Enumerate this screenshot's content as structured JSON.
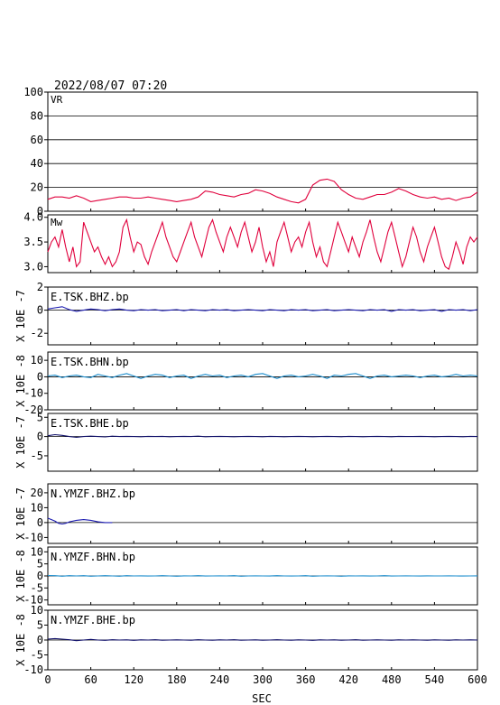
{
  "header": {
    "timestamp": "2022/08/07  07:20"
  },
  "chart_data": [
    {
      "type": "line",
      "label": "VR",
      "ylim": [
        0,
        100
      ],
      "yticks": [
        "0",
        "20",
        "40",
        "60",
        "80",
        "100"
      ],
      "ytick_values": [
        0,
        20,
        40,
        60,
        80,
        100
      ],
      "grid": true,
      "color": "#e0003c",
      "x": [
        0,
        10,
        20,
        30,
        40,
        50,
        60,
        70,
        80,
        90,
        100,
        110,
        120,
        130,
        140,
        150,
        160,
        170,
        180,
        190,
        200,
        210,
        220,
        230,
        240,
        250,
        260,
        270,
        280,
        290,
        300,
        310,
        320,
        330,
        340,
        350,
        360,
        370,
        380,
        390,
        400,
        410,
        420,
        430,
        440,
        450,
        460,
        470,
        480,
        490,
        500,
        510,
        520,
        530,
        540,
        550,
        560,
        570,
        580,
        590,
        600
      ],
      "y": [
        10,
        12,
        12,
        11,
        13,
        11,
        8,
        9,
        10,
        11,
        12,
        12,
        11,
        11,
        12,
        11,
        10,
        9,
        8,
        9,
        10,
        12,
        17,
        16,
        14,
        13,
        12,
        14,
        15,
        18,
        17,
        15,
        12,
        10,
        8,
        7,
        10,
        22,
        26,
        27,
        25,
        18,
        14,
        11,
        10,
        12,
        14,
        14,
        16,
        19,
        17,
        14,
        12,
        11,
        12,
        10,
        11,
        9,
        11,
        12,
        16
      ]
    },
    {
      "type": "line",
      "label": "Mw",
      "ylim": [
        2.88,
        4.05
      ],
      "yticks": [
        "3.0",
        "3.5",
        "4.0"
      ],
      "ytick_values": [
        3.0,
        3.5,
        4.0
      ],
      "color": "#e0003c",
      "x": [
        0,
        5,
        10,
        15,
        20,
        25,
        30,
        35,
        40,
        45,
        50,
        55,
        60,
        65,
        70,
        75,
        80,
        85,
        90,
        95,
        100,
        105,
        110,
        115,
        120,
        125,
        130,
        135,
        140,
        145,
        150,
        155,
        160,
        165,
        170,
        175,
        180,
        185,
        190,
        195,
        200,
        205,
        210,
        215,
        220,
        225,
        230,
        235,
        240,
        245,
        250,
        255,
        260,
        265,
        270,
        275,
        280,
        285,
        290,
        295,
        300,
        305,
        310,
        315,
        320,
        325,
        330,
        335,
        340,
        345,
        350,
        355,
        360,
        365,
        370,
        375,
        380,
        385,
        390,
        395,
        400,
        405,
        410,
        415,
        420,
        425,
        430,
        435,
        440,
        445,
        450,
        455,
        460,
        465,
        470,
        475,
        480,
        485,
        490,
        495,
        500,
        505,
        510,
        515,
        520,
        525,
        530,
        535,
        540,
        545,
        550,
        555,
        560,
        565,
        570,
        575,
        580,
        585,
        590,
        595,
        600
      ],
      "y": [
        3.3,
        3.5,
        3.6,
        3.4,
        3.75,
        3.4,
        3.1,
        3.4,
        3.0,
        3.1,
        3.9,
        3.7,
        3.5,
        3.3,
        3.4,
        3.2,
        3.05,
        3.2,
        3.0,
        3.1,
        3.3,
        3.8,
        3.95,
        3.6,
        3.3,
        3.5,
        3.45,
        3.2,
        3.05,
        3.3,
        3.5,
        3.7,
        3.9,
        3.6,
        3.4,
        3.2,
        3.1,
        3.3,
        3.5,
        3.7,
        3.9,
        3.6,
        3.4,
        3.2,
        3.5,
        3.8,
        3.95,
        3.7,
        3.5,
        3.3,
        3.6,
        3.8,
        3.6,
        3.4,
        3.7,
        3.9,
        3.6,
        3.3,
        3.5,
        3.8,
        3.4,
        3.1,
        3.3,
        3.0,
        3.5,
        3.7,
        3.9,
        3.6,
        3.3,
        3.5,
        3.6,
        3.4,
        3.7,
        3.9,
        3.5,
        3.2,
        3.4,
        3.1,
        3.0,
        3.3,
        3.6,
        3.9,
        3.7,
        3.5,
        3.3,
        3.6,
        3.4,
        3.2,
        3.5,
        3.7,
        3.95,
        3.6,
        3.3,
        3.1,
        3.4,
        3.7,
        3.9,
        3.6,
        3.3,
        3.0,
        3.2,
        3.5,
        3.8,
        3.6,
        3.3,
        3.1,
        3.4,
        3.6,
        3.8,
        3.5,
        3.2,
        3.0,
        2.95,
        3.2,
        3.5,
        3.3,
        3.05,
        3.4,
        3.6,
        3.5,
        3.6
      ]
    },
    {
      "type": "line",
      "label": "E.TSK.BHZ.bp",
      "ylabel": "X 10E -7",
      "ylim": [
        -3,
        2
      ],
      "yticks": [
        "2",
        "0",
        "-2"
      ],
      "ytick_values": [
        2,
        0,
        -2
      ],
      "zero_line": true,
      "color": "#1a1ab0",
      "x": [
        0,
        10,
        20,
        30,
        40,
        50,
        60,
        70,
        80,
        90,
        100,
        110,
        120,
        130,
        140,
        150,
        160,
        170,
        180,
        190,
        200,
        210,
        220,
        230,
        240,
        250,
        260,
        270,
        280,
        290,
        300,
        310,
        320,
        330,
        340,
        350,
        360,
        370,
        380,
        390,
        400,
        410,
        420,
        430,
        440,
        450,
        460,
        470,
        480,
        490,
        500,
        510,
        520,
        530,
        540,
        550,
        560,
        570,
        580,
        590,
        600
      ],
      "y": [
        0.1,
        0.2,
        0.3,
        0.05,
        -0.1,
        0.0,
        0.1,
        0.05,
        -0.05,
        0.05,
        0.1,
        0.0,
        -0.05,
        0.05,
        0.0,
        0.05,
        -0.05,
        0.0,
        0.05,
        -0.05,
        0.05,
        0.0,
        -0.05,
        0.05,
        0.0,
        0.05,
        -0.05,
        0.0,
        0.05,
        0.0,
        -0.05,
        0.05,
        0.0,
        -0.05,
        0.05,
        0.0,
        0.05,
        -0.05,
        0.0,
        0.05,
        -0.05,
        0.0,
        0.05,
        0.0,
        -0.05,
        0.05,
        0.0,
        0.05,
        -0.1,
        0.05,
        0.0,
        0.05,
        -0.05,
        0.0,
        0.05,
        -0.1,
        0.05,
        0.0,
        0.05,
        -0.05,
        0.05
      ]
    },
    {
      "type": "line",
      "label": "E.TSK.BHN.bp",
      "ylabel": "X 10E -8",
      "ylim": [
        -20,
        15
      ],
      "yticks": [
        "10",
        "0",
        "-10",
        "-20"
      ],
      "ytick_values": [
        10,
        0,
        -10,
        -20
      ],
      "zero_line": true,
      "color": "#1a8ccc",
      "x": [
        0,
        10,
        20,
        30,
        40,
        50,
        60,
        70,
        80,
        90,
        100,
        110,
        120,
        130,
        140,
        150,
        160,
        170,
        180,
        190,
        200,
        210,
        220,
        230,
        240,
        250,
        260,
        270,
        280,
        290,
        300,
        310,
        320,
        330,
        340,
        350,
        360,
        370,
        380,
        390,
        400,
        410,
        420,
        430,
        440,
        450,
        460,
        470,
        480,
        490,
        500,
        510,
        520,
        530,
        540,
        550,
        560,
        570,
        580,
        590,
        600
      ],
      "y": [
        0.5,
        1,
        -0.5,
        0.5,
        1,
        0,
        -0.5,
        1.5,
        0.5,
        -0.5,
        1,
        2,
        0.5,
        -1,
        0.5,
        1.5,
        1,
        -0.5,
        0.5,
        1,
        -1,
        0.5,
        1.5,
        0.5,
        1,
        -0.5,
        0.5,
        1,
        0,
        1.5,
        2,
        0.5,
        -1,
        0.5,
        1,
        0,
        0.5,
        1.5,
        0.5,
        -1,
        1,
        0.5,
        1.5,
        2,
        0.5,
        -1,
        0.5,
        1,
        0,
        0.5,
        1,
        0.5,
        -0.5,
        0.5,
        1,
        0,
        0.5,
        1.5,
        0.5,
        1,
        0.5
      ]
    },
    {
      "type": "line",
      "label": "E.TSK.BHE.bp",
      "ylabel": "X 10E -7",
      "ylim": [
        -9,
        6
      ],
      "yticks": [
        "5",
        "0",
        "-5"
      ],
      "ytick_values": [
        5,
        0,
        -5
      ],
      "zero_line": true,
      "color": "#10106a",
      "x": [
        0,
        10,
        20,
        30,
        40,
        50,
        60,
        70,
        80,
        90,
        100,
        110,
        120,
        130,
        140,
        150,
        160,
        170,
        180,
        190,
        200,
        210,
        220,
        230,
        240,
        250,
        260,
        270,
        280,
        290,
        300,
        310,
        320,
        330,
        340,
        350,
        360,
        370,
        380,
        390,
        400,
        410,
        420,
        430,
        440,
        450,
        460,
        470,
        480,
        490,
        500,
        510,
        520,
        530,
        540,
        550,
        560,
        570,
        580,
        590,
        600
      ],
      "y": [
        0.2,
        0.5,
        0.3,
        0.0,
        -0.2,
        0.0,
        0.1,
        0.0,
        -0.1,
        0.1,
        0.0,
        0.05,
        0.0,
        -0.05,
        0.05,
        0.0,
        0.05,
        -0.05,
        0.0,
        0.05,
        0.0,
        0.1,
        -0.05,
        0.0,
        0.05,
        0.0,
        -0.05,
        0.0,
        0.05,
        0.0,
        -0.05,
        0.05,
        0.0,
        -0.05,
        0.0,
        0.05,
        0.0,
        -0.05,
        0.0,
        0.05,
        0.0,
        -0.05,
        0.05,
        0.0,
        -0.05,
        0.0,
        0.05,
        0.0,
        -0.05,
        0.05,
        0.0,
        0.0,
        0.05,
        0.0,
        -0.05,
        0.0,
        0.05,
        0.0,
        -0.05,
        0.05,
        0.0
      ]
    },
    {
      "type": "line",
      "label": "N.YMZF.BHZ.bp",
      "ylabel": "X 10E -7",
      "ylim": [
        -14,
        26
      ],
      "yticks": [
        "20",
        "10",
        "0",
        "-10"
      ],
      "ytick_values": [
        20,
        10,
        0,
        -10
      ],
      "zero_line": true,
      "color": "#1a1ab0",
      "x": [
        0,
        5,
        10,
        15,
        20,
        25,
        30,
        40,
        50,
        60,
        70,
        80,
        90
      ],
      "y": [
        3,
        2,
        1,
        -0.5,
        -1,
        -0.5,
        0.5,
        1.5,
        2,
        1.5,
        0.5,
        0,
        0
      ]
    },
    {
      "type": "line",
      "label": "N.YMZF.BHN.bp",
      "ylabel": "X 10E -8",
      "ylim": [
        -12,
        12
      ],
      "yticks": [
        "10",
        "5",
        "0",
        "-5",
        "-10"
      ],
      "ytick_values": [
        10,
        5,
        0,
        -5,
        -10
      ],
      "zero_line": true,
      "color": "#1a8ccc",
      "x": [
        0,
        10,
        20,
        30,
        40,
        50,
        60,
        70,
        80,
        90,
        100,
        110,
        120,
        130,
        140,
        150,
        160,
        170,
        180,
        190,
        200,
        210,
        220,
        230,
        240,
        250,
        260,
        270,
        280,
        290,
        300,
        310,
        320,
        330,
        340,
        350,
        360,
        370,
        380,
        390,
        400,
        410,
        420,
        430,
        440,
        450,
        460,
        470,
        480,
        490,
        500,
        510,
        520,
        530,
        540,
        550,
        560,
        570,
        580,
        590,
        600
      ],
      "y": [
        0.2,
        0.1,
        -0.1,
        0.1,
        0.0,
        0.1,
        -0.1,
        0.0,
        0.1,
        0.0,
        -0.1,
        0.1,
        0.0,
        0.05,
        -0.05,
        0.0,
        0.1,
        0.0,
        -0.1,
        0.05,
        0.0,
        0.1,
        -0.05,
        0.0,
        0.05,
        0.0,
        0.1,
        -0.1,
        0.0,
        0.05,
        0.0,
        -0.05,
        0.1,
        0.0,
        -0.05,
        0.0,
        0.1,
        -0.1,
        0.0,
        0.05,
        0.0,
        -0.1,
        0.05,
        0.0,
        0.05,
        -0.05,
        0.0,
        0.1,
        -0.05,
        0.0,
        0.05,
        0.0,
        -0.05,
        0.05,
        0.0,
        0.0,
        0.05,
        0.0,
        -0.05,
        0.0,
        0.05
      ]
    },
    {
      "type": "line",
      "label": "N.YMZF.BHE.bp",
      "ylabel": "X 10E -8",
      "ylim": [
        -10,
        10
      ],
      "yticks": [
        "10",
        "5",
        "0",
        "-5",
        "-10"
      ],
      "ytick_values": [
        10,
        5,
        0,
        -5,
        -10
      ],
      "zero_line": true,
      "color": "#10106a",
      "x": [
        0,
        10,
        20,
        30,
        40,
        50,
        60,
        70,
        80,
        90,
        100,
        110,
        120,
        130,
        140,
        150,
        160,
        170,
        180,
        190,
        200,
        210,
        220,
        230,
        240,
        250,
        260,
        270,
        280,
        290,
        300,
        310,
        320,
        330,
        340,
        350,
        360,
        370,
        380,
        390,
        400,
        410,
        420,
        430,
        440,
        450,
        460,
        470,
        480,
        490,
        500,
        510,
        520,
        530,
        540,
        550,
        560,
        570,
        580,
        590,
        600
      ],
      "y": [
        0.3,
        0.5,
        0.3,
        0.1,
        -0.2,
        0.0,
        0.2,
        0.0,
        -0.1,
        0.1,
        0.0,
        0.05,
        -0.1,
        0.05,
        0.0,
        0.1,
        -0.05,
        0.0,
        0.05,
        0.0,
        -0.05,
        0.1,
        0.0,
        -0.05,
        0.05,
        0.0,
        0.1,
        -0.05,
        0.0,
        0.05,
        -0.05,
        0.0,
        0.1,
        0.0,
        -0.05,
        0.05,
        0.0,
        -0.1,
        0.05,
        0.0,
        0.05,
        -0.05,
        0.0,
        0.1,
        -0.05,
        0.0,
        0.05,
        0.0,
        -0.05,
        0.05,
        0.0,
        0.05,
        0.0,
        -0.05,
        0.05,
        0.0,
        -0.05,
        0.05,
        0.0,
        0.05,
        0.0
      ]
    }
  ],
  "xaxis": {
    "label": "SEC",
    "xlim": [
      0,
      600
    ],
    "ticks": [
      "0",
      "60",
      "120",
      "180",
      "240",
      "300",
      "360",
      "420",
      "480",
      "540",
      "600"
    ],
    "tick_values": [
      0,
      60,
      120,
      180,
      240,
      300,
      360,
      420,
      480,
      540,
      600
    ]
  }
}
